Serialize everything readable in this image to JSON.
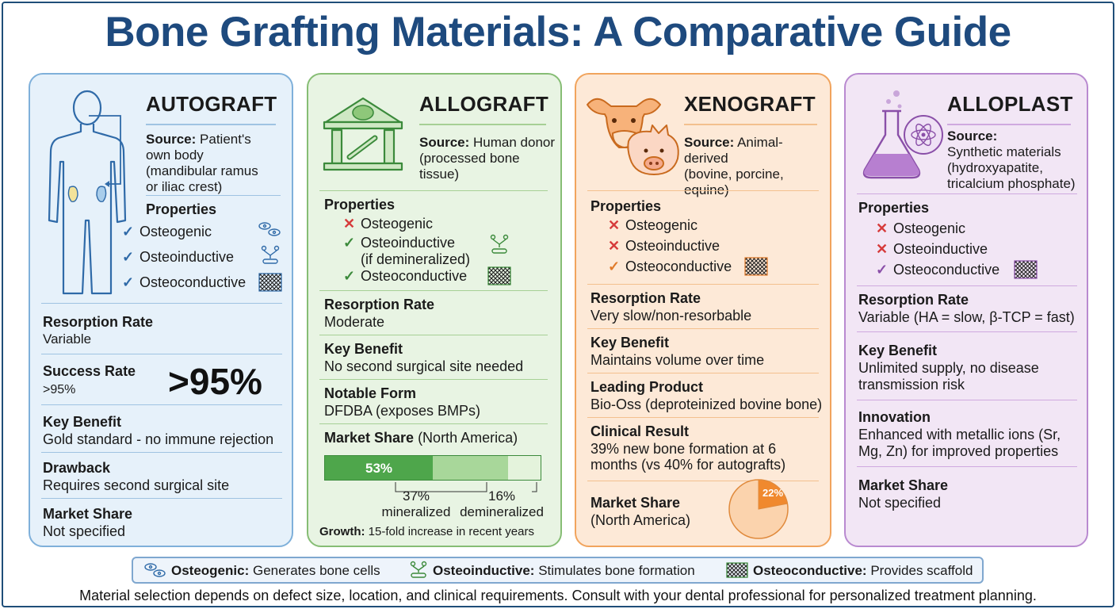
{
  "title": "Bone Grafting Materials: A Comparative Guide",
  "colors": {
    "title": "#1e4a7e",
    "autograft": "#e6f1fa",
    "allograft": "#e8f4e3",
    "xenograft": "#fde9d7",
    "alloplast": "#f2e6f5"
  },
  "autograft": {
    "heading": "AUTOGRAFT",
    "source_label": "Source:",
    "source_lines": [
      " Patient's",
      "own body",
      "(mandibular ramus",
      "or iliac crest)"
    ],
    "properties_label": "Properties",
    "properties": [
      {
        "mark": "✓",
        "name": "Osteogenic",
        "icon": "osteogenic-icon"
      },
      {
        "mark": "✓",
        "name": "Osteoinductive",
        "icon": "osteoinductive-icon"
      },
      {
        "mark": "✓",
        "name": "Osteoconductive",
        "icon": "osteoconductive-icon"
      }
    ],
    "resorption_label": "Resorption Rate",
    "resorption_value": "Variable",
    "success_label": "Success Rate",
    "success_value": ">95%",
    "success_big": ">95%",
    "benefit_label": "Key Benefit",
    "benefit_value": "Gold standard - no immune rejection",
    "drawback_label": "Drawback",
    "drawback_value": "Requires second surgical site",
    "market_label": "Market Share",
    "market_value": "Not specified"
  },
  "allograft": {
    "heading": "ALLOGRAFT",
    "source_label": "Source:",
    "source_lines": [
      " Human donor",
      "(processed bone",
      "tissue)"
    ],
    "properties_label": "Properties",
    "properties": [
      {
        "mark": "✕",
        "name": "Osteogenic"
      },
      {
        "mark": "✓",
        "name": "Osteoinductive",
        "sub": "(if demineralized)"
      },
      {
        "mark": "✓",
        "name": "Osteoconductive"
      }
    ],
    "resorption_label": "Resorption Rate",
    "resorption_value": "Moderate",
    "benefit_label": "Key Benefit",
    "benefit_value": "No second surgical site needed",
    "form_label": "Notable Form",
    "form_value": "DFDBA (exposes BMPs)",
    "market_label": "Market Share",
    "market_region": " (North America)",
    "market_bar": {
      "segments": [
        {
          "value": 53,
          "label": "53%"
        },
        {
          "value": 37,
          "label": "37%",
          "name": "mineralized"
        },
        {
          "value": 16,
          "label": "16%",
          "name": "demineralized"
        }
      ]
    },
    "growth_label": "Growth:",
    "growth_value": " 15-fold increase in recent years"
  },
  "xenograft": {
    "heading": "XENOGRAFT",
    "source_label": "Source:",
    "source_lines": [
      " Animal-derived",
      "(bovine, porcine,",
      "equine)"
    ],
    "properties_label": "Properties",
    "properties": [
      {
        "mark": "✕",
        "name": "Osteogenic"
      },
      {
        "mark": "✕",
        "name": "Osteoinductive"
      },
      {
        "mark": "✓",
        "name": "Osteoconductive"
      }
    ],
    "resorption_label": "Resorption Rate",
    "resorption_value": "Very slow/non-resorbable",
    "benefit_label": "Key Benefit",
    "benefit_value": "Maintains volume over time",
    "product_label": "Leading Product",
    "product_value": "Bio-Oss (deproteinized bovine bone)",
    "clinical_label": "Clinical Result",
    "clinical_lines": [
      "39% new bone formation at 6",
      "months (vs 40% for autografts)"
    ],
    "market_label": "Market Share",
    "market_region": "(North America)",
    "market_pie": {
      "value": 22,
      "label": "22%"
    }
  },
  "alloplast": {
    "heading": "ALLOPLAST",
    "source_label": "Source:",
    "source_lines": [
      "Synthetic materials",
      "(hydroxyapatite,",
      "tricalcium phosphate)"
    ],
    "properties_label": "Properties",
    "properties": [
      {
        "mark": "✕",
        "name": "Osteogenic"
      },
      {
        "mark": "✕",
        "name": "Osteoinductive"
      },
      {
        "mark": "✓",
        "name": "Osteoconductive"
      }
    ],
    "resorption_label": "Resorption Rate",
    "resorption_value": "Variable (HA = slow, β-TCP = fast)",
    "benefit_label": "Key Benefit",
    "benefit_lines": [
      "Unlimited supply, no disease",
      "transmission risk"
    ],
    "innovation_label": "Innovation",
    "innovation_lines": [
      "Enhanced with metallic ions (Sr,",
      "Mg, Zn) for improved properties"
    ],
    "market_label": "Market Share",
    "market_value": "Not specified"
  },
  "legend": [
    {
      "term": "Osteogenic:",
      "desc": " Generates bone cells",
      "icon": "osteogenic-icon"
    },
    {
      "term": "Osteoinductive:",
      "desc": " Stimulates bone formation",
      "icon": "osteoinductive-icon"
    },
    {
      "term": "Osteoconductive:",
      "desc": " Provides scaffold",
      "icon": "osteoconductive-icon"
    }
  ],
  "footer": "Material selection depends on defect size, location, and clinical requirements. Consult with your dental professional for personalized treatment planning."
}
